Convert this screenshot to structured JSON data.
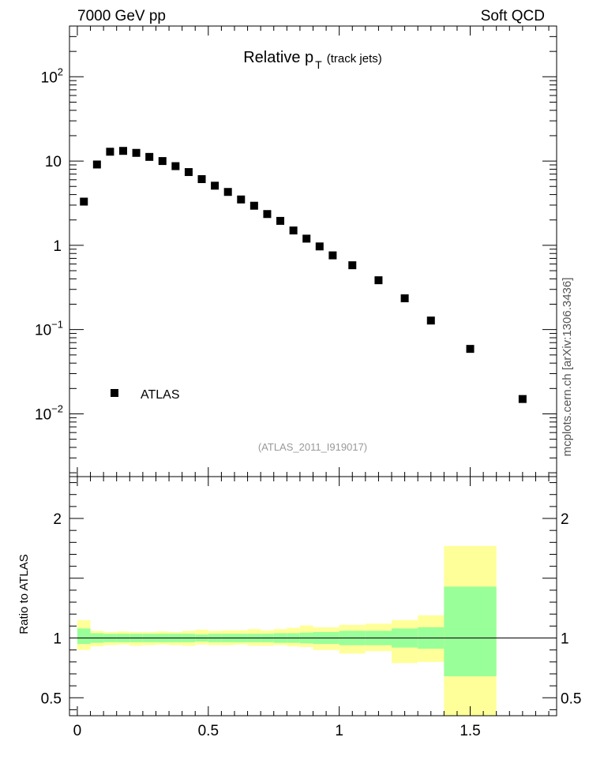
{
  "header": {
    "left": "7000 GeV pp",
    "right": "Soft QCD"
  },
  "side_label": "mcplots.cern.ch [arXiv:1306.3436]",
  "analysis_label": "(ATLAS_2011_I919017)",
  "colors": {
    "band_inner": "#99ff99",
    "band_outer": "#ffff99",
    "marker": "#000000",
    "analysis_label": "#999999"
  },
  "chart_data": [
    {
      "type": "scatter",
      "title_main": "Relative p",
      "title_sub": "T",
      "title_tail": "(track jets)",
      "xlabel": "",
      "ylabel": "",
      "yscale": "log",
      "xlim": [
        -0.03,
        1.83
      ],
      "ylim": [
        0.0018,
        400
      ],
      "yticks": [
        {
          "value": 0.01,
          "base": "10",
          "exp": "−2"
        },
        {
          "value": 0.1,
          "base": "10",
          "exp": "−1"
        },
        {
          "value": 1,
          "base": "1",
          "exp": ""
        },
        {
          "value": 10,
          "base": "10",
          "exp": ""
        },
        {
          "value": 100,
          "base": "10",
          "exp": "2"
        }
      ],
      "legend": {
        "entries": [
          "ATLAS"
        ],
        "placement": "bottom-left"
      },
      "series": [
        {
          "name": "ATLAS",
          "x": [
            0.025,
            0.075,
            0.125,
            0.175,
            0.225,
            0.275,
            0.325,
            0.375,
            0.425,
            0.475,
            0.525,
            0.575,
            0.625,
            0.675,
            0.725,
            0.775,
            0.825,
            0.875,
            0.925,
            0.975,
            1.05,
            1.15,
            1.25,
            1.35,
            1.5,
            1.7
          ],
          "y": [
            3.3,
            9.1,
            12.9,
            13.2,
            12.5,
            11.2,
            10.0,
            8.7,
            7.4,
            6.1,
            5.1,
            4.3,
            3.5,
            2.95,
            2.35,
            1.95,
            1.5,
            1.2,
            0.97,
            0.76,
            0.58,
            0.385,
            0.235,
            0.128,
            0.059,
            0.015
          ]
        }
      ]
    },
    {
      "type": "area",
      "ylabel": "Ratio to ATLAS",
      "xlim": [
        -0.03,
        1.83
      ],
      "ylim": [
        0.35,
        2.35
      ],
      "xticks": [
        "0",
        "0.5",
        "1",
        "1.5"
      ],
      "xtick_values": [
        0,
        0.5,
        1,
        1.5
      ],
      "yticks": [
        "0.5",
        "1",
        "2"
      ],
      "ytick_values": [
        0.5,
        1,
        2
      ],
      "reference_line": 1,
      "bins": [
        {
          "lo": 0.0,
          "hi": 0.05,
          "in_lo": 0.95,
          "in_hi": 1.08,
          "out_lo": 0.9,
          "out_hi": 1.15
        },
        {
          "lo": 0.05,
          "hi": 0.1,
          "in_lo": 0.96,
          "in_hi": 1.04,
          "out_lo": 0.93,
          "out_hi": 1.06
        },
        {
          "lo": 0.1,
          "hi": 0.15,
          "in_lo": 0.965,
          "in_hi": 1.035,
          "out_lo": 0.94,
          "out_hi": 1.05
        },
        {
          "lo": 0.15,
          "hi": 0.2,
          "in_lo": 0.965,
          "in_hi": 1.035,
          "out_lo": 0.945,
          "out_hi": 1.055
        },
        {
          "lo": 0.2,
          "hi": 0.25,
          "in_lo": 0.965,
          "in_hi": 1.035,
          "out_lo": 0.935,
          "out_hi": 1.05
        },
        {
          "lo": 0.25,
          "hi": 0.3,
          "in_lo": 0.965,
          "in_hi": 1.035,
          "out_lo": 0.94,
          "out_hi": 1.05
        },
        {
          "lo": 0.3,
          "hi": 0.35,
          "in_lo": 0.965,
          "in_hi": 1.035,
          "out_lo": 0.945,
          "out_hi": 1.055
        },
        {
          "lo": 0.35,
          "hi": 0.4,
          "in_lo": 0.965,
          "in_hi": 1.035,
          "out_lo": 0.94,
          "out_hi": 1.05
        },
        {
          "lo": 0.4,
          "hi": 0.45,
          "in_lo": 0.965,
          "in_hi": 1.035,
          "out_lo": 0.935,
          "out_hi": 1.06
        },
        {
          "lo": 0.45,
          "hi": 0.5,
          "in_lo": 0.97,
          "in_hi": 1.03,
          "out_lo": 0.945,
          "out_hi": 1.07
        },
        {
          "lo": 0.5,
          "hi": 0.55,
          "in_lo": 0.965,
          "in_hi": 1.035,
          "out_lo": 0.94,
          "out_hi": 1.06
        },
        {
          "lo": 0.55,
          "hi": 0.6,
          "in_lo": 0.965,
          "in_hi": 1.035,
          "out_lo": 0.94,
          "out_hi": 1.065
        },
        {
          "lo": 0.6,
          "hi": 0.65,
          "in_lo": 0.965,
          "in_hi": 1.035,
          "out_lo": 0.945,
          "out_hi": 1.065
        },
        {
          "lo": 0.65,
          "hi": 0.7,
          "in_lo": 0.965,
          "in_hi": 1.035,
          "out_lo": 0.935,
          "out_hi": 1.075
        },
        {
          "lo": 0.7,
          "hi": 0.75,
          "in_lo": 0.965,
          "in_hi": 1.035,
          "out_lo": 0.935,
          "out_hi": 1.065
        },
        {
          "lo": 0.75,
          "hi": 0.8,
          "in_lo": 0.96,
          "in_hi": 1.04,
          "out_lo": 0.94,
          "out_hi": 1.075
        },
        {
          "lo": 0.8,
          "hi": 0.85,
          "in_lo": 0.96,
          "in_hi": 1.04,
          "out_lo": 0.93,
          "out_hi": 1.085
        },
        {
          "lo": 0.85,
          "hi": 0.9,
          "in_lo": 0.955,
          "in_hi": 1.045,
          "out_lo": 0.925,
          "out_hi": 1.105
        },
        {
          "lo": 0.9,
          "hi": 1.0,
          "in_lo": 0.95,
          "in_hi": 1.05,
          "out_lo": 0.9,
          "out_hi": 1.09
        },
        {
          "lo": 1.0,
          "hi": 1.1,
          "in_lo": 0.94,
          "in_hi": 1.06,
          "out_lo": 0.87,
          "out_hi": 1.11
        },
        {
          "lo": 1.1,
          "hi": 1.2,
          "in_lo": 0.94,
          "in_hi": 1.06,
          "out_lo": 0.89,
          "out_hi": 1.12
        },
        {
          "lo": 1.2,
          "hi": 1.3,
          "in_lo": 0.92,
          "in_hi": 1.08,
          "out_lo": 0.79,
          "out_hi": 1.15
        },
        {
          "lo": 1.3,
          "hi": 1.4,
          "in_lo": 0.91,
          "in_hi": 1.09,
          "out_lo": 0.8,
          "out_hi": 1.19
        },
        {
          "lo": 1.4,
          "hi": 1.6,
          "in_lo": 0.68,
          "in_hi": 1.43,
          "out_lo": 0.35,
          "out_hi": 1.77
        }
      ]
    }
  ]
}
